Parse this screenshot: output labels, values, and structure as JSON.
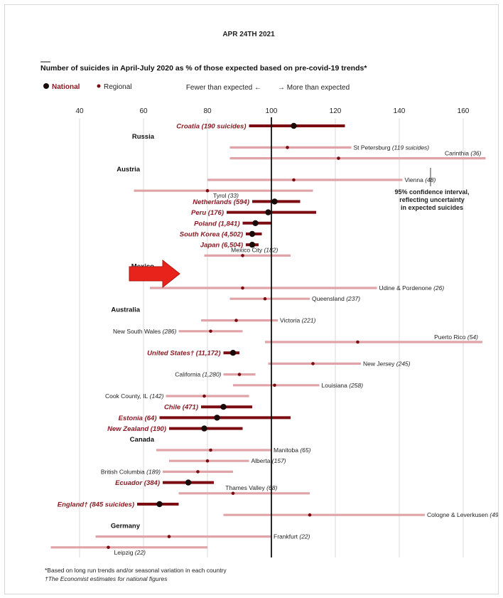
{
  "date": "APR 24TH 2021",
  "chart_data": {
    "type": "dot-range",
    "title": "Number of suicides in April-July 2020 as % of those expected based on pre-covid-19 trends*",
    "legend": {
      "national": "National",
      "regional": "Regional"
    },
    "direction": {
      "fewer": "Fewer than expected ←",
      "more": "→ More than expected"
    },
    "xlim": [
      30,
      168
    ],
    "xticks": [
      40,
      60,
      80,
      100,
      120,
      140,
      160
    ],
    "reference": 100,
    "annotation": "95% confidence interval, reflecting uncertainty in expected suicides",
    "colors": {
      "national": "#7a0c12",
      "regional": "#dfa3a8",
      "national_label": "#8a1a22",
      "dot": "#1a0a0a",
      "arrow": "#e8231c"
    },
    "rows": [
      {
        "kind": "national",
        "label": "Croatia",
        "note": "(190 suicides)",
        "value": 107,
        "low": 93,
        "high": 123
      },
      {
        "kind": "group",
        "label": "Russia"
      },
      {
        "kind": "regional",
        "label": "St Petersburg",
        "note": "(119 suicides)",
        "value": 105,
        "low": 87,
        "high": 125,
        "side": "right"
      },
      {
        "kind": "regional",
        "label": "Carinthia",
        "note": "(36)",
        "value": 121,
        "low": 87,
        "high": 167,
        "side": "right"
      },
      {
        "kind": "group",
        "label": "Austria"
      },
      {
        "kind": "regional",
        "label": "Vienna",
        "note": "(48)",
        "value": 107,
        "low": 80,
        "high": 141,
        "side": "right"
      },
      {
        "kind": "regional",
        "label": "Tyrol",
        "note": "(33)",
        "value": 80,
        "low": 57,
        "high": 113,
        "side": "below"
      },
      {
        "kind": "national",
        "label": "Netherlands",
        "note": "(594)",
        "value": 101,
        "low": 94,
        "high": 109
      },
      {
        "kind": "national",
        "label": "Peru",
        "note": "(176)",
        "value": 99,
        "low": 86,
        "high": 114
      },
      {
        "kind": "national",
        "label": "Poland",
        "note": "(1,841)",
        "value": 95,
        "low": 91,
        "high": 100
      },
      {
        "kind": "national",
        "label": "South Korea",
        "note": "(4,502)",
        "value": 94,
        "low": 92,
        "high": 97
      },
      {
        "kind": "national",
        "label": "Japan",
        "note": "(6,504)",
        "value": 94,
        "low": 92,
        "high": 96,
        "highlight": true
      },
      {
        "kind": "regional",
        "label": "Mexico City",
        "note": "(182)",
        "value": 91,
        "low": 79,
        "high": 106,
        "side": "above"
      },
      {
        "kind": "group",
        "label": "Mexico"
      },
      {
        "kind": "group",
        "label": "Italy"
      },
      {
        "kind": "regional",
        "label": "Udine & Pordenone",
        "note": "(26)",
        "value": 91,
        "low": 62,
        "high": 133,
        "side": "right"
      },
      {
        "kind": "regional",
        "label": "Queensland",
        "note": "(237)",
        "value": 98,
        "low": 87,
        "high": 112,
        "side": "right"
      },
      {
        "kind": "group",
        "label": "Australia"
      },
      {
        "kind": "regional",
        "label": "Victoria",
        "note": "(221)",
        "value": 89,
        "low": 78,
        "high": 102,
        "side": "right"
      },
      {
        "kind": "regional",
        "label": "New South Wales",
        "note": "(286)",
        "value": 81,
        "low": 71,
        "high": 91,
        "side": "left"
      },
      {
        "kind": "regional",
        "label": "Puerto Rico",
        "note": "(54)",
        "value": 127,
        "low": 98,
        "high": 166,
        "side": "right"
      },
      {
        "kind": "national",
        "label": "United States†",
        "note": "(11,172)",
        "value": 88,
        "low": 85,
        "high": 90
      },
      {
        "kind": "regional",
        "label": "New Jersey",
        "note": "(245)",
        "value": 113,
        "low": 99,
        "high": 128,
        "side": "right"
      },
      {
        "kind": "regional",
        "label": "California",
        "note": "(1,280)",
        "value": 90,
        "low": 85,
        "high": 95,
        "side": "left"
      },
      {
        "kind": "regional",
        "label": "Louisiana",
        "note": "(258)",
        "value": 101,
        "low": 88,
        "high": 115,
        "side": "right"
      },
      {
        "kind": "regional",
        "label": "Cook County, IL",
        "note": "(142)",
        "value": 79,
        "low": 67,
        "high": 93,
        "side": "left"
      },
      {
        "kind": "national",
        "label": "Chile",
        "note": "(471)",
        "value": 85,
        "low": 78,
        "high": 94
      },
      {
        "kind": "national",
        "label": "Estonia",
        "note": "(64)",
        "value": 83,
        "low": 65,
        "high": 106
      },
      {
        "kind": "national",
        "label": "New Zealand",
        "note": "(190)",
        "value": 79,
        "low": 68,
        "high": 91
      },
      {
        "kind": "group",
        "label": "Canada"
      },
      {
        "kind": "regional",
        "label": "Manitoba",
        "note": "(65)",
        "value": 81,
        "low": 64,
        "high": 100,
        "side": "right"
      },
      {
        "kind": "regional",
        "label": "Alberta",
        "note": "(157)",
        "value": 80,
        "low": 68,
        "high": 93,
        "side": "right"
      },
      {
        "kind": "regional",
        "label": "British Columbia",
        "note": "(189)",
        "value": 77,
        "low": 66,
        "high": 88,
        "side": "left"
      },
      {
        "kind": "national",
        "label": "Ecuador",
        "note": "(384)",
        "value": 74,
        "low": 66,
        "high": 82
      },
      {
        "kind": "regional",
        "label": "Thames Valley",
        "note": "(68)",
        "value": 88,
        "low": 71,
        "high": 112,
        "side": "above"
      },
      {
        "kind": "national",
        "label": "England†",
        "note": "(845 suicides)",
        "value": 65,
        "low": 58,
        "high": 71
      },
      {
        "kind": "regional",
        "label": "Cologne & Leverkusen",
        "note": "(49)",
        "value": 112,
        "low": 85,
        "high": 148,
        "side": "right"
      },
      {
        "kind": "group",
        "label": "Germany"
      },
      {
        "kind": "regional",
        "label": "Frankfurt",
        "note": "(22)",
        "value": 68,
        "low": 45,
        "high": 100,
        "side": "right"
      },
      {
        "kind": "regional",
        "label": "Leipzig",
        "note": "(22)",
        "value": 49,
        "low": 31,
        "high": 80,
        "side": "below"
      }
    ]
  },
  "footnotes": [
    "*Based on long run trends and/or seasonal variation in each country",
    "†The Economist estimates for national figures"
  ]
}
